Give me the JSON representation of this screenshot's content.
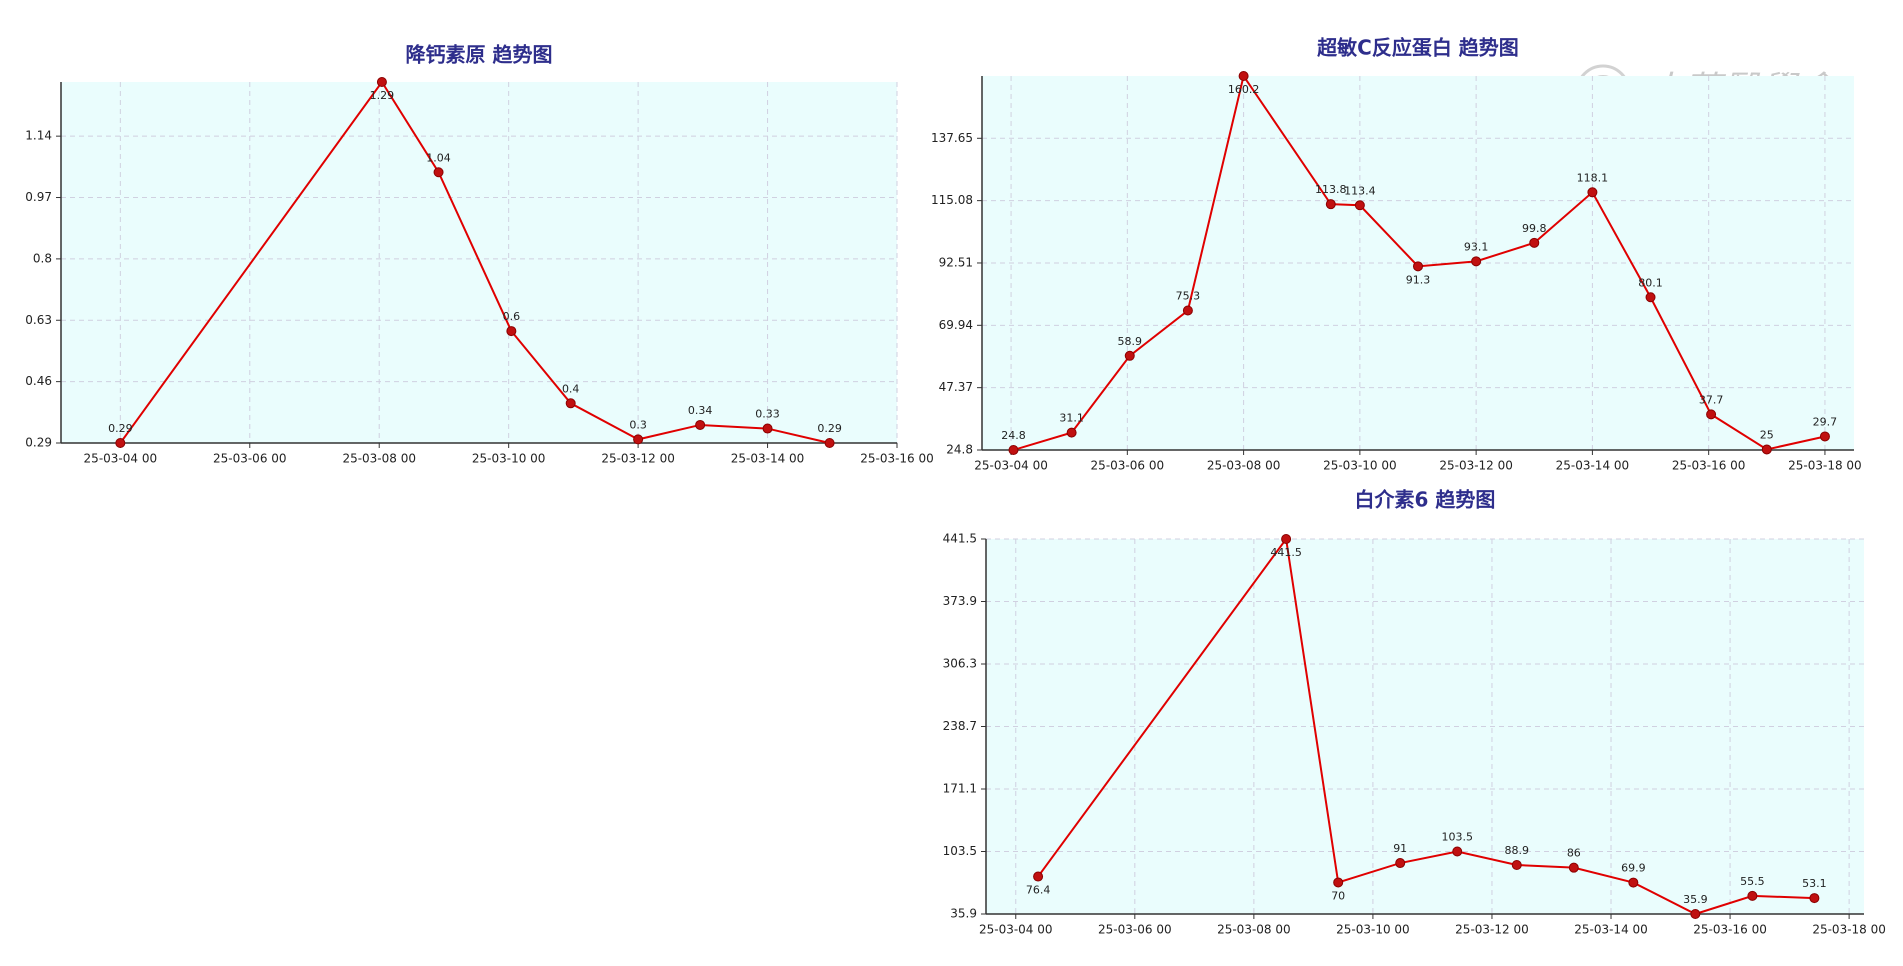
{
  "chart_data": [
    {
      "type": "line",
      "title": "降钙素原 趋势图",
      "x": [
        "25-03-04 00",
        "25-03-08 01",
        "25-03-08 22",
        "25-03-10 01",
        "25-03-10 23",
        "25-03-12 00",
        "25-03-12 23",
        "25-03-14 00",
        "25-03-14 23"
      ],
      "series": [
        {
          "color": "#e00000",
          "values": [
            0.29,
            1.29,
            1.04,
            0.6,
            0.4,
            0.3,
            0.34,
            0.33,
            0.29
          ]
        }
      ],
      "xlim": [
        "25-03-03 02",
        "25-03-16 00"
      ],
      "xticks": [
        "25-03-04 00",
        "25-03-06 00",
        "25-03-08 00",
        "25-03-10 00",
        "25-03-12 00",
        "25-03-14 00",
        "25-03-16 00"
      ],
      "ylim": [
        0.29,
        1.29
      ],
      "yticks": [
        0.29,
        0.46,
        0.63,
        0.8,
        0.97,
        1.14
      ],
      "grid": true
    },
    {
      "type": "line",
      "title": "超敏C反应蛋白  趋势图",
      "x": [
        "25-03-04 01",
        "25-03-05 01",
        "25-03-06 01",
        "25-03-07 01",
        "25-03-08 00",
        "25-03-09 12",
        "25-03-10 00",
        "25-03-11 00",
        "25-03-12 00",
        "25-03-13 00",
        "25-03-14 00",
        "25-03-15 00",
        "25-03-16 01",
        "25-03-17 00",
        "25-03-18 00"
      ],
      "series": [
        {
          "color": "#e00000",
          "values": [
            24.8,
            31.1,
            58.9,
            75.3,
            160.2,
            113.8,
            113.4,
            91.3,
            93.1,
            99.8,
            118.1,
            80.1,
            37.7,
            25,
            29.7
          ]
        }
      ],
      "xlim": [
        "25-03-03 12",
        "25-03-18 12"
      ],
      "xticks": [
        "25-03-04 00",
        "25-03-06 00",
        "25-03-08 00",
        "25-03-10 00",
        "25-03-12 00",
        "25-03-14 00",
        "25-03-16 00",
        "25-03-18 00"
      ],
      "ylim": [
        24.8,
        160.2
      ],
      "yticks": [
        24.8,
        47.37,
        69.94,
        92.51,
        115.08,
        137.65
      ],
      "grid": true
    },
    {
      "type": "line",
      "title": "白介素6 趋势图",
      "x": [
        "25-03-04 09",
        "25-03-08 13",
        "25-03-09 10",
        "25-03-10 11",
        "25-03-11 10",
        "25-03-12 10",
        "25-03-13 09",
        "25-03-14 09",
        "25-03-15 10",
        "25-03-16 09",
        "25-03-17 10"
      ],
      "series": [
        {
          "color": "#e00000",
          "values": [
            76.4,
            441.5,
            70,
            91,
            103.5,
            88.9,
            86,
            69.9,
            35.9,
            55.5,
            53.1
          ]
        }
      ],
      "xlim": [
        "25-03-03 12",
        "25-03-18 06"
      ],
      "xticks": [
        "25-03-04 00",
        "25-03-06 00",
        "25-03-08 00",
        "25-03-10 00",
        "25-03-12 00",
        "25-03-14 00",
        "25-03-16 00",
        "25-03-18 00"
      ],
      "ylim": [
        35.9,
        441.5
      ],
      "yticks": [
        35.9,
        103.5,
        171.1,
        238.7,
        306.3,
        373.9,
        441.5
      ],
      "grid": true
    }
  ],
  "watermark": "中華醫學會"
}
